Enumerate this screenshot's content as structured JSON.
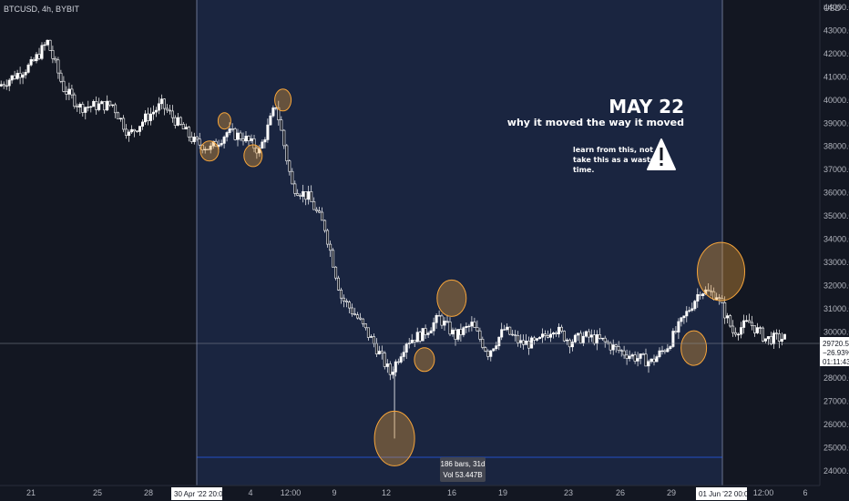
{
  "header": {
    "symbol": "BTCUSD, 4h, BYBIT"
  },
  "currency": "USD",
  "annotations": {
    "title": "MAY 22",
    "subtitle": "why it moved the way it moved",
    "note": [
      "learn from this, not",
      "take this as a waste of",
      "time."
    ]
  },
  "range_box": {
    "label_bars": "186 bars, 31d",
    "label_vol": "Vol 53.447B"
  },
  "price_tag": {
    "price": "29720.5",
    "change": "−26.93%",
    "countdown": "01:11:43"
  },
  "colors": {
    "background": "#131722",
    "selection": "#1a2540",
    "highlight": "#f7a53a",
    "candle": "#ffffff"
  },
  "chart_data": {
    "type": "candlestick",
    "y_axis_labels": [
      "44000.0",
      "43000.0",
      "42000.0",
      "41000.0",
      "40000.0",
      "39000.0",
      "38000.0",
      "37000.0",
      "36000.0",
      "35000.0",
      "34000.0",
      "33000.0",
      "32000.0",
      "31000.0",
      "30000.0",
      "29000.0",
      "28000.0",
      "27000.0",
      "26000.0",
      "25000.0",
      "24000.0"
    ],
    "x_axis_labels": [
      "21",
      "25",
      "28",
      "4",
      "12:00",
      "9",
      "12",
      "16",
      "19",
      "23",
      "26",
      "29",
      "12:00",
      "6"
    ],
    "x_markers": [
      "30 Apr '22   20:00",
      "01 Jun '22   00:00"
    ],
    "ylim": [
      23800,
      44500
    ],
    "last_price": 29720.5,
    "path": [
      [
        "Apr 18",
        40600
      ],
      [
        "Apr 20",
        41500
      ],
      [
        "Apr 21",
        42500
      ],
      [
        "Apr 22",
        40500
      ],
      [
        "Apr 23",
        39700
      ],
      [
        "Apr 25",
        39800
      ],
      [
        "Apr 26",
        38500
      ],
      [
        "Apr 27",
        39200
      ],
      [
        "Apr 28",
        39800
      ],
      [
        "Apr 29",
        39000
      ],
      [
        "Apr 30",
        38200
      ],
      [
        "May 1",
        37900
      ],
      [
        "May 2",
        38600
      ],
      [
        "May 3",
        38400
      ],
      [
        "May 4",
        37800
      ],
      [
        "May 5",
        39800
      ],
      [
        "May 6",
        36300
      ],
      [
        "May 7",
        35800
      ],
      [
        "May 8",
        34500
      ],
      [
        "May 9",
        31500
      ],
      [
        "May 10",
        30600
      ],
      [
        "May 11",
        29500
      ],
      [
        "May 12",
        28200
      ],
      [
        "May 13",
        29600
      ],
      [
        "May 14",
        29900
      ],
      [
        "May 15",
        30600
      ],
      [
        "May 16",
        29800
      ],
      [
        "May 17",
        30300
      ],
      [
        "May 18",
        29100
      ],
      [
        "May 19",
        30100
      ],
      [
        "May 20",
        29500
      ],
      [
        "May 21",
        29500
      ],
      [
        "May 22",
        30200
      ],
      [
        "May 23",
        29600
      ],
      [
        "May 24",
        29800
      ],
      [
        "May 25",
        29600
      ],
      [
        "May 26",
        29200
      ],
      [
        "May 27",
        28900
      ],
      [
        "May 28",
        28700
      ],
      [
        "May 29",
        29400
      ],
      [
        "May 30",
        30600
      ],
      [
        "May 31",
        31800
      ],
      [
        "Jun 1",
        31600
      ],
      [
        "Jun 2",
        30000
      ],
      [
        "Jun 3",
        30400
      ],
      [
        "Jun 4",
        29700
      ],
      [
        "Jun 5",
        29720
      ]
    ],
    "highlight_circles": [
      {
        "date": "Apr 30 20:00",
        "price": 37800
      },
      {
        "date": "May 1 18:00",
        "price": 39100
      },
      {
        "date": "May 3 12:00",
        "price": 37600
      },
      {
        "date": "May 5 08:00",
        "price": 40000
      },
      {
        "date": "May 12 04:00",
        "price": 25400
      },
      {
        "date": "May 15 16:00",
        "price": 31450
      },
      {
        "date": "May 14 00:00",
        "price": 28800
      },
      {
        "date": "May 30 12:00",
        "price": 29300
      },
      {
        "date": "Jun 1 04:00",
        "price": 32600
      }
    ]
  }
}
